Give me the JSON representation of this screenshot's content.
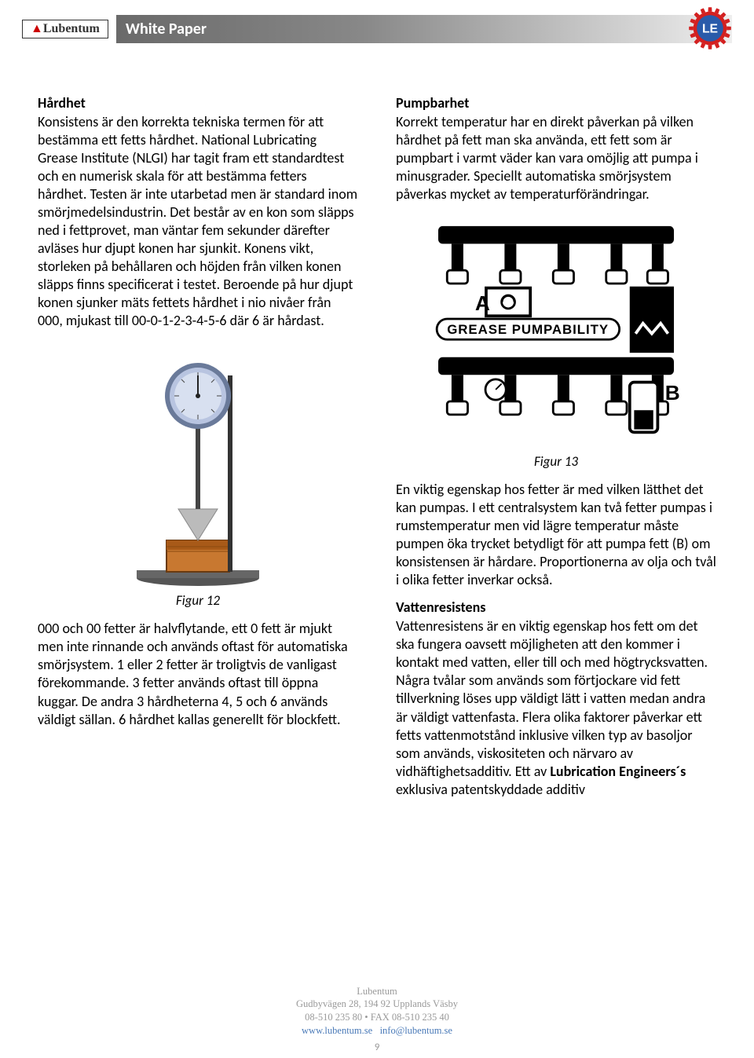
{
  "header": {
    "logo_brand": "Lubentum",
    "title": "White Paper",
    "le_gear_color": "#d32020",
    "le_inner_color": "#2a5baa"
  },
  "left": {
    "h1": "Hårdhet",
    "p1": "Konsistens är den korrekta tekniska termen för att bestämma ett fetts hårdhet. National Lubricating Grease Institute (NLGI) har tagit fram ett standardtest och en numerisk skala för att bestämma fetters hårdhet. Testen är inte utarbetad men är standard inom smörjmedelsindustrin. Det består av en kon som släpps ned i fettprovet, man väntar fem sekunder därefter avläses hur djupt konen har sjunkit. Konens vikt, storleken på behållaren och höjden från vilken konen släpps finns specificerat i testet. Beroende på hur djupt konen sjunker mäts fettets hårdhet i nio nivåer från 000, mjukast till 00-0-1-2-3-4-5-6 där 6 är hårdast.",
    "fig12_caption": "Figur 12",
    "p2": "000 och 00 fetter är halvflytande, ett 0 fett är mjukt men inte rinnande och används oftast för automatiska smörjsystem. 1 eller 2 fetter är troligtvis de vanligast förekommande. 3 fetter används oftast till öppna kuggar. De andra 3 hårdheterna 4, 5 och 6 används väldigt sällan. 6 hårdhet kallas generellt för blockfett.",
    "penetrometer": {
      "dial_color": "#b8c4e0",
      "dial_rim": "#6a7a9a",
      "stand_color": "#333333",
      "cone_color": "#bbbbbb",
      "cup_color": "#c87830",
      "base_color": "#555555"
    }
  },
  "right": {
    "h1": "Pumpbarhet",
    "p1": "Korrekt temperatur har en direkt påverkan på vilken hårdhet på fett man ska använda, ett fett som är pumpbart i varmt väder kan vara omöjlig att pumpa i minusgrader. Speciellt automatiska smörjsystem påverkas mycket av temperaturförändringar.",
    "pumpability_label": "GREASE PUMPABILITY",
    "label_A": "A",
    "label_B": "B",
    "fig13_caption": "Figur 13",
    "p2": "En viktig egenskap hos fetter är med vilken lätthet det kan pumpas. I ett centralsystem kan två fetter pumpas i rumstemperatur men vid lägre temperatur måste pumpen öka trycket betydligt för att pumpa fett (B) om konsistensen är hårdare. Proportionerna av olja och tvål i olika fetter inverkar också.",
    "h2": "Vattenresistens",
    "p3_a": "Vattenresistens är en viktig egenskap hos fett om det ska fungera oavsett möjligheten att den kommer i kontakt med vatten, eller till och med högtrycksvatten. Några tvålar som används som förtjockare vid fett tillverkning löses upp väldigt lätt i vatten medan andra är väldigt vattenfasta. Flera olika faktorer påverkar ett fetts vattenmotstånd inklusive vilken typ av basoljor som används, viskositeten och närvaro av vidhäftighetsadditiv. Ett av ",
    "p3_b": "Lubrication Engineers´s",
    "p3_c": " exklusiva patentskyddade additiv"
  },
  "footer": {
    "name": "Lubentum",
    "addr": "Gudbyvägen 28, 194 92 Upplands Väsby",
    "phone": "08-510 235 80 • FAX 08-510 235 40",
    "web": "www.lubentum.se",
    "email": "info@lubentum.se",
    "page": "9"
  }
}
